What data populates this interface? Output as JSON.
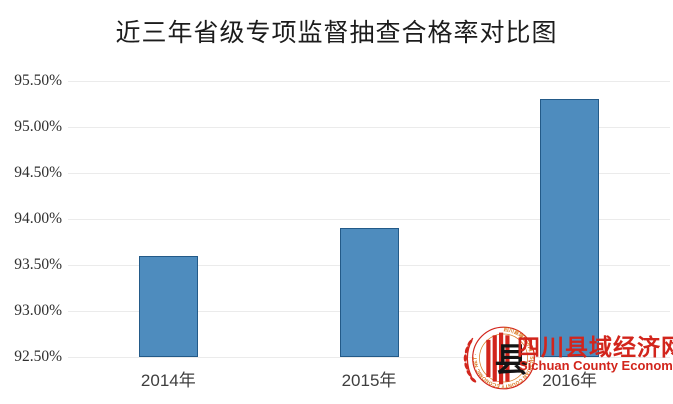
{
  "page": {
    "background": "#ffffff"
  },
  "chart_data": {
    "type": "bar",
    "title": "近三年省级专项监督抽查合格率对比图",
    "categories": [
      "2014年",
      "2015年",
      "2016年"
    ],
    "values": [
      93.6,
      93.9,
      95.3
    ],
    "xlabel": "",
    "ylabel": "",
    "ylim": [
      92.5,
      95.5
    ],
    "ytick_step": 0.5,
    "yticks": [
      "95.50%",
      "95.00%",
      "94.50%",
      "94.00%",
      "93.50%",
      "93.00%",
      "92.50%"
    ],
    "grid": true,
    "legend": "none",
    "bar_color": "#4e8cbe",
    "bar_border_color": "#235a88",
    "gridline_color": "#ebebeb"
  },
  "watermark": {
    "site_name_cn": "四川县域经济网",
    "site_name_en": "Sichuan County Economic Net",
    "text_color": "#d2251c",
    "ring_accent_color": "#d8771e",
    "logo_char": "县",
    "logo_ring_text": "四川县域经济网 · SICHUAN COUNTY ECONOMIC NET ·"
  }
}
